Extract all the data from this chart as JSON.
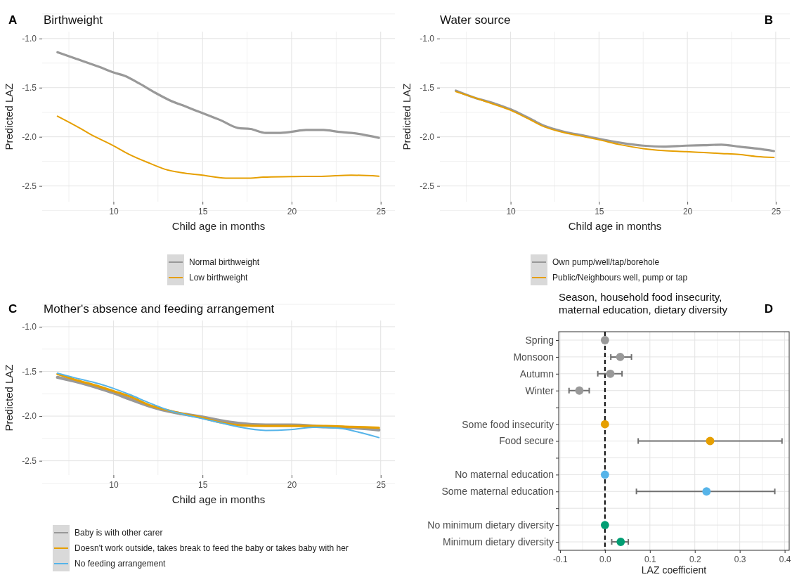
{
  "chart_data": [
    {
      "type": "line",
      "title": "Birthweight",
      "annotations": [
        "A"
      ],
      "xlabel": "Child age in months",
      "ylabel": "Predicted LAZ",
      "xlim": [
        6,
        25.8
      ],
      "xticks": [
        10,
        15,
        20,
        25
      ],
      "ylim": [
        -2.66,
        -0.93
      ],
      "yticks": [
        {
          "value": -1,
          "label": "-1.0"
        },
        {
          "value": -1.5,
          "label": "-1.5"
        },
        {
          "value": -2,
          "label": "-2.0"
        },
        {
          "value": -2.5,
          "label": "-2.5"
        }
      ],
      "grid": true,
      "legend": "bottom",
      "series": [
        {
          "name": "Normal birthweight",
          "color": "#999999",
          "x": [
            6.86,
            7.81,
            9.22,
            10,
            10.64,
            11.48,
            12.33,
            13.18,
            14.03,
            15.01,
            16.0,
            16.99,
            17.7,
            18.55,
            19.25,
            19.96,
            20.81,
            21.79,
            22.64,
            23.35,
            24.9
          ],
          "values": [
            -1.14,
            -1.2,
            -1.29,
            -1.345,
            -1.38,
            -1.46,
            -1.55,
            -1.63,
            -1.69,
            -1.76,
            -1.83,
            -1.91,
            -1.92,
            -1.96,
            -1.96,
            -1.95,
            -1.93,
            -1.93,
            -1.95,
            -1.96,
            -2.01
          ]
        },
        {
          "name": "Low birthweight",
          "color": "#e69f00",
          "x": [
            6.86,
            8.1,
            8.66,
            10,
            10.9,
            12.05,
            12.9,
            14.03,
            15.0,
            16.3,
            17.7,
            18.4,
            20.0,
            21.9,
            23.35,
            24.9
          ],
          "values": [
            -1.79,
            -1.91,
            -1.97,
            -2.09,
            -2.18,
            -2.27,
            -2.33,
            -2.37,
            -2.39,
            -2.42,
            -2.42,
            -2.41,
            -2.405,
            -2.4,
            -2.39,
            -2.4
          ]
        }
      ]
    },
    {
      "type": "line",
      "title": "Water source",
      "annotations": [
        "B"
      ],
      "xlabel": "Child age in months",
      "ylabel": "Predicted LAZ",
      "xlim": [
        6,
        25.8
      ],
      "xticks": [
        10,
        15,
        20,
        25
      ],
      "ylim": [
        -2.66,
        -0.93
      ],
      "yticks": [
        {
          "value": -1,
          "label": "-1.0"
        },
        {
          "value": -1.5,
          "label": "-1.5"
        },
        {
          "value": -2,
          "label": "-2.0"
        },
        {
          "value": -2.5,
          "label": "-2.5"
        }
      ],
      "grid": true,
      "legend": "bottom",
      "series": [
        {
          "name": "Own pump/well/tap/borehole",
          "color": "#999999",
          "x": [
            6.9,
            7.93,
            9.07,
            10,
            10.93,
            11.93,
            13.07,
            14.21,
            15,
            16.21,
            17.5,
            18.64,
            19.93,
            20.93,
            21.93,
            22.93,
            23.93,
            24.9
          ],
          "values": [
            -1.53,
            -1.6,
            -1.66,
            -1.72,
            -1.8,
            -1.89,
            -1.95,
            -1.99,
            -2.02,
            -2.06,
            -2.09,
            -2.1,
            -2.09,
            -2.085,
            -2.08,
            -2.1,
            -2.12,
            -2.145
          ]
        },
        {
          "name": "Public/Neighbours well, pump or tap",
          "color": "#e69f00",
          "x": [
            6.9,
            7.93,
            9.07,
            10,
            10.93,
            11.93,
            13.07,
            14.21,
            15,
            16.21,
            17.5,
            18.64,
            19.93,
            20.93,
            21.93,
            22.93,
            23.93,
            24.9
          ],
          "values": [
            -1.54,
            -1.6,
            -1.67,
            -1.73,
            -1.81,
            -1.9,
            -1.96,
            -2.0,
            -2.03,
            -2.08,
            -2.12,
            -2.14,
            -2.15,
            -2.16,
            -2.17,
            -2.18,
            -2.2,
            -2.21
          ]
        }
      ]
    },
    {
      "type": "line",
      "title": "Mother's absence and feeding arrangement",
      "annotations": [
        "C"
      ],
      "xlabel": "Child age in months",
      "ylabel": "Predicted LAZ",
      "xlim": [
        6,
        25.8
      ],
      "xticks": [
        10,
        15,
        20,
        25
      ],
      "ylim": [
        -2.66,
        -0.93
      ],
      "yticks": [
        {
          "value": -1,
          "label": "-1.0"
        },
        {
          "value": -1.5,
          "label": "-1.5"
        },
        {
          "value": -2,
          "label": "-2.0"
        },
        {
          "value": -2.5,
          "label": "-2.5"
        }
      ],
      "grid": true,
      "legend": "bottom",
      "series": [
        {
          "name": "Baby is with other carer",
          "color": "#999999",
          "x": [
            6.86,
            7.81,
            9.22,
            10,
            10.92,
            12.05,
            13.18,
            14.03,
            15.01,
            16.0,
            16.99,
            18.55,
            19.96,
            21.93,
            23.35,
            24.9
          ],
          "values": [
            -1.566,
            -1.61,
            -1.69,
            -1.74,
            -1.81,
            -1.89,
            -1.95,
            -1.98,
            -2.01,
            -2.05,
            -2.08,
            -2.1,
            -2.1,
            -2.12,
            -2.13,
            -2.155
          ]
        },
        {
          "name": "Doesn't work outside, takes break to feed the baby or takes baby with her",
          "color": "#e69f00",
          "x": [
            6.86,
            7.81,
            9.22,
            10,
            10.92,
            12.05,
            13.18,
            14.03,
            15.01,
            16.0,
            16.99,
            18.55,
            19.96,
            21.93,
            23.35,
            24.9
          ],
          "values": [
            -1.53,
            -1.59,
            -1.67,
            -1.72,
            -1.78,
            -1.88,
            -1.94,
            -1.98,
            -2.02,
            -2.07,
            -2.1,
            -2.11,
            -2.11,
            -2.11,
            -2.12,
            -2.13
          ]
        },
        {
          "name": "No feeding arrangement",
          "color": "#56b4e9",
          "x": [
            6.86,
            7.81,
            9.22,
            10,
            10.92,
            12.05,
            13.18,
            14.03,
            15.01,
            16.0,
            16.99,
            18.55,
            19.96,
            21.23,
            22.64,
            23.77,
            24.9
          ],
          "values": [
            -1.52,
            -1.57,
            -1.64,
            -1.69,
            -1.76,
            -1.855,
            -1.94,
            -1.985,
            -2.03,
            -2.075,
            -2.12,
            -2.16,
            -2.15,
            -2.125,
            -2.135,
            -2.18,
            -2.24
          ]
        }
      ]
    },
    {
      "type": "scatter",
      "orientation": "horizontal",
      "title": "Season, household food insecurity,\nmaternal education, dietary diversity",
      "annotations": [
        "D"
      ],
      "xlabel": "LAZ coefficient",
      "xlim": [
        -0.103,
        0.41
      ],
      "xticks": [
        {
          "value": -0.1,
          "label": "-0.1"
        },
        {
          "value": 0,
          "label": "0.0"
        },
        0.1,
        0.2,
        0.3,
        0.4
      ],
      "grid": true,
      "marker": "circle",
      "categories": [
        "Spring",
        "Monsoon",
        "Autumn",
        "Winter",
        null,
        "Some food insecurity",
        "Food secure",
        null,
        "No maternal education",
        "Some maternal education",
        null,
        "No minimum dietary diversity",
        "Minimum dietary diversity"
      ],
      "ref_lines": [
        {
          "axis": "x",
          "value": 0,
          "color": "#000000",
          "line_style": "dashed"
        }
      ],
      "series": [
        {
          "colors": [
            "#999999",
            "#999999",
            "#999999",
            "#999999",
            null,
            "#e69f00",
            "#e69f00",
            null,
            "#56b4e9",
            "#56b4e9",
            null,
            "#009e73",
            "#009e73"
          ],
          "values": [
            0,
            0.034,
            0.012,
            -0.057,
            null,
            0,
            0.234,
            null,
            0,
            0.226,
            null,
            0,
            0.035
          ],
          "errors": [
            null,
            [
              0.013,
              0.059
            ],
            [
              -0.016,
              0.038
            ],
            [
              -0.08,
              -0.035
            ],
            null,
            null,
            [
              0.074,
              0.394
            ],
            null,
            null,
            [
              0.07,
              0.378
            ],
            null,
            null,
            [
              0.015,
              0.052
            ]
          ]
        }
      ]
    }
  ]
}
